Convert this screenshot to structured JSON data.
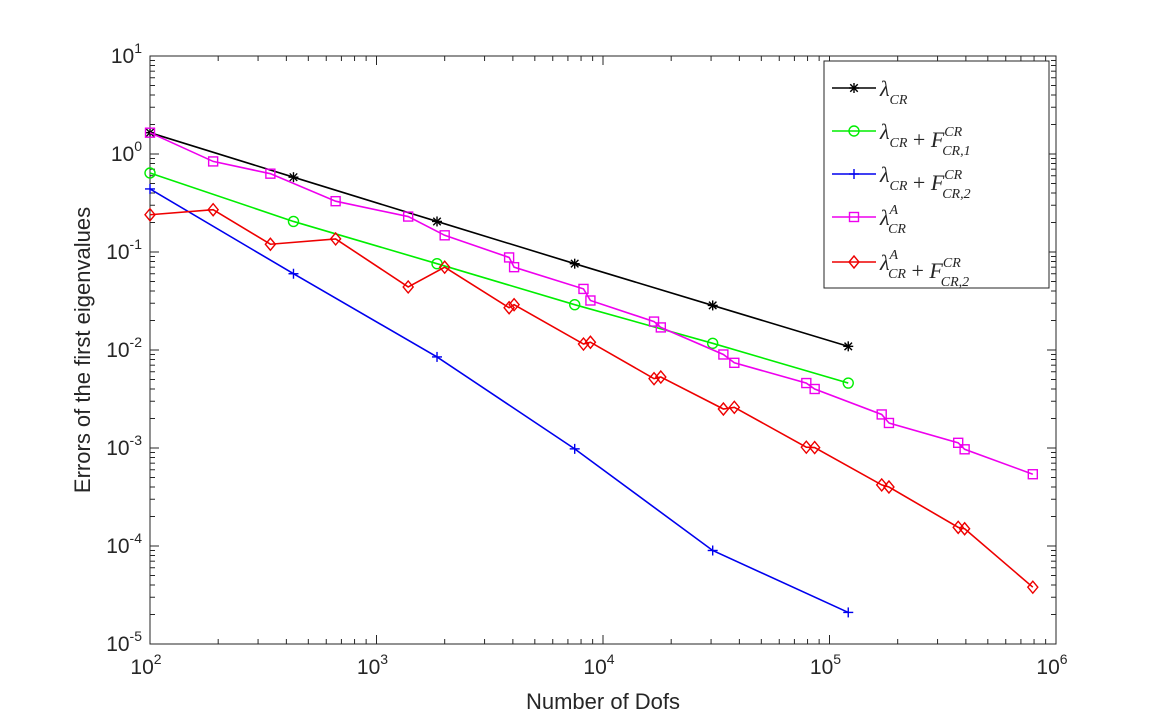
{
  "chart_data": {
    "type": "line",
    "xscale": "log",
    "yscale": "log",
    "xlim": [
      100,
      1000000
    ],
    "ylim": [
      1e-05,
      10
    ],
    "xlabel": "Number of Dofs",
    "ylabel": "Errors of the first eigenvalues",
    "grid": false,
    "legend_position": "top-right",
    "x_ticks": [
      {
        "base": "10",
        "exp": "2",
        "value": 100
      },
      {
        "base": "10",
        "exp": "3",
        "value": 1000
      },
      {
        "base": "10",
        "exp": "4",
        "value": 10000
      },
      {
        "base": "10",
        "exp": "5",
        "value": 100000
      },
      {
        "base": "10",
        "exp": "6",
        "value": 1000000
      }
    ],
    "y_ticks": [
      {
        "base": "10",
        "exp": "-5",
        "value": 1e-05
      },
      {
        "base": "10",
        "exp": "-4",
        "value": 0.0001
      },
      {
        "base": "10",
        "exp": "-3",
        "value": 0.001
      },
      {
        "base": "10",
        "exp": "-2",
        "value": 0.01
      },
      {
        "base": "10",
        "exp": "-1",
        "value": 0.1
      },
      {
        "base": "10",
        "exp": "0",
        "value": 1
      },
      {
        "base": "10",
        "exp": "1",
        "value": 10
      }
    ],
    "series": [
      {
        "name": "lambda_CR",
        "legend": {
          "main": "λ",
          "sub": "CR",
          "plus": "",
          "F": "",
          "Fsub": "",
          "Fsup": "",
          "sup": ""
        },
        "color": "#000000",
        "marker": "asterisk",
        "x": [
          100,
          430,
          1850,
          7500,
          30500,
          121000
        ],
        "y": [
          1.65,
          0.58,
          0.205,
          0.076,
          0.0285,
          0.0109
        ]
      },
      {
        "name": "lambda_CR + F_CR,1",
        "legend": {
          "main": "λ",
          "sub": "CR",
          "plus": " + ",
          "F": "F",
          "Fsub": "CR,1",
          "Fsup": "CR",
          "sup": ""
        },
        "color": "#00ee00",
        "marker": "circle",
        "x": [
          100,
          430,
          1850,
          7500,
          30500,
          121000
        ],
        "y": [
          0.64,
          0.205,
          0.076,
          0.029,
          0.0117,
          0.0046
        ]
      },
      {
        "name": "lambda_CR + F_CR,2",
        "legend": {
          "main": "λ",
          "sub": "CR",
          "plus": " + ",
          "F": "F",
          "Fsub": "CR,2",
          "Fsup": "CR",
          "sup": ""
        },
        "color": "#0000ee",
        "marker": "plus",
        "x": [
          100,
          430,
          1850,
          7500,
          30500,
          121000
        ],
        "y": [
          0.44,
          0.06,
          0.0085,
          0.00098,
          9e-05,
          2.1e-05
        ]
      },
      {
        "name": "lambda_CR^A",
        "legend": {
          "main": "λ",
          "sub": "CR",
          "plus": "",
          "F": "",
          "Fsub": "",
          "Fsup": "",
          "sup": "A"
        },
        "color": "#ee00ee",
        "marker": "square",
        "x": [
          100,
          190,
          340,
          660,
          1380,
          2000,
          3850,
          4050,
          8200,
          8800,
          16800,
          18000,
          34000,
          38000,
          79000,
          86000,
          170000,
          183000,
          370000,
          395000,
          790000
        ],
        "y": [
          1.65,
          0.84,
          0.63,
          0.33,
          0.23,
          0.148,
          0.088,
          0.07,
          0.042,
          0.032,
          0.0195,
          0.017,
          0.009,
          0.0074,
          0.0046,
          0.004,
          0.0022,
          0.0018,
          0.00113,
          0.00097,
          0.00054
        ]
      },
      {
        "name": "lambda_CR^A + F_CR,2",
        "legend": {
          "main": "λ",
          "sub": "CR",
          "plus": " + ",
          "F": "F",
          "Fsub": "CR,2",
          "Fsup": "CR",
          "sup": "A"
        },
        "color": "#ee0000",
        "marker": "diamond",
        "x": [
          100,
          190,
          340,
          660,
          1380,
          2000,
          3850,
          4050,
          8200,
          8800,
          16800,
          18000,
          34000,
          38000,
          79000,
          86000,
          170000,
          183000,
          370000,
          395000,
          790000
        ],
        "y": [
          0.24,
          0.27,
          0.12,
          0.136,
          0.044,
          0.07,
          0.027,
          0.029,
          0.0115,
          0.012,
          0.0051,
          0.0053,
          0.0025,
          0.0026,
          0.00102,
          0.00101,
          0.00042,
          0.0004,
          0.000155,
          0.00015,
          3.8e-05
        ]
      }
    ]
  }
}
